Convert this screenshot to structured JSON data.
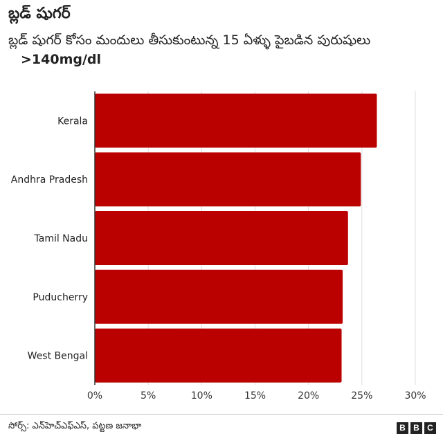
{
  "title": "బ్లడ్ షుగర్",
  "subtitle": "బ్లడ్ షుగర్ కోసం మందులు తీసుకుంటున్న 15 ఏళ్ళు పైబడిన పురుషులు",
  "threshold": ">140mg/dl",
  "source": "సోర్స్: ఎన్‌హెచ్ఎఫ్ఎస్, పట్టణ జనాభా",
  "logo": [
    "B",
    "B",
    "C"
  ],
  "colors": {
    "bar": "#bb0000",
    "grid": "#dddddd",
    "axis": "#333333"
  },
  "chart_data": {
    "type": "bar",
    "orientation": "horizontal",
    "categories": [
      "Kerala",
      "Andhra Pradesh",
      "Tamil Nadu",
      "Puducherry",
      "West Bengal"
    ],
    "values": [
      26.4,
      24.9,
      23.7,
      23.2,
      23.1
    ],
    "xlim": [
      0,
      30
    ],
    "x_ticks": [
      "0%",
      "5%",
      "10%",
      "15%",
      "20%",
      "25%",
      "30%"
    ],
    "grid": true
  }
}
